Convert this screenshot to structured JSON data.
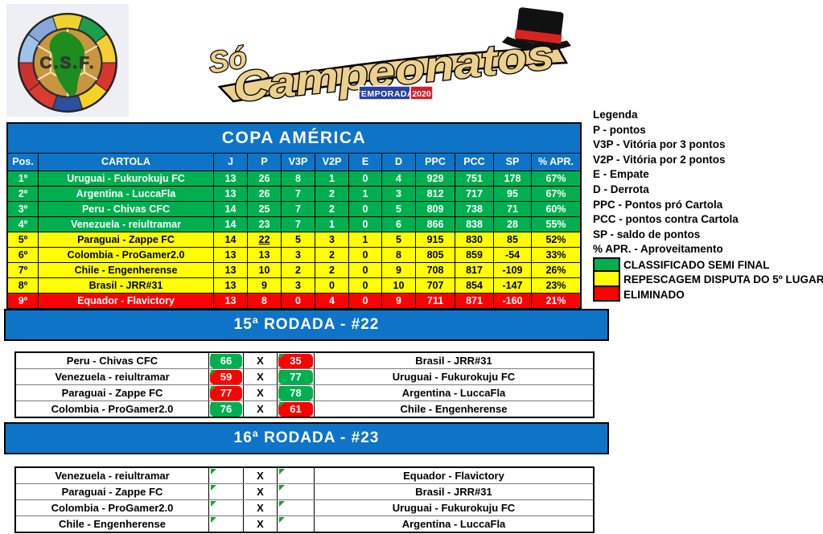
{
  "header": {
    "csf_logo_text": "C.S.F.",
    "csf_ring_colors": [
      "#F0D22E",
      "#1E9E4A",
      "#F4CE32",
      "#D8352F",
      "#F7D028",
      "#2D4FA0",
      "#DA3B32",
      "#C8332E",
      "#9FC2E8",
      "#86A8DC"
    ],
    "sc_logo": {
      "so": "Só",
      "main": "Campeonatos",
      "temporada": "TEMPORADA",
      "year": "2020"
    }
  },
  "colors": {
    "banner_blue": "#0E74C8",
    "win_green": "#00B050",
    "loss_red": "#FF0000",
    "playoff_yellow": "#FFFF00",
    "triangle_green": "#1E9E30"
  },
  "standings": {
    "title": "COPA AMÉRICA",
    "columns": [
      "Pos.",
      "CARTOLA",
      "J",
      "P",
      "V3P",
      "V2P",
      "E",
      "D",
      "PPC",
      "PCC",
      "SP",
      "% APR."
    ],
    "status_styles": {
      "classified": {
        "bg": "#00B050",
        "fg": "#FFFFFF"
      },
      "playoff": {
        "bg": "#FFFF00",
        "fg": "#000000"
      },
      "eliminated": {
        "bg": "#FF0000",
        "fg": "#FFFFFF"
      }
    },
    "rows": [
      {
        "pos": "1º",
        "cartola": "Uruguai - Fukurokuju FC",
        "j": "13",
        "p": "26",
        "v3p": "8",
        "v2p": "1",
        "e": "0",
        "d": "4",
        "ppc": "929",
        "pcc": "751",
        "sp": "178",
        "apr": "67%",
        "status": "classified"
      },
      {
        "pos": "2º",
        "cartola": "Argentina - LuccaFla",
        "j": "13",
        "p": "26",
        "v3p": "7",
        "v2p": "2",
        "e": "1",
        "d": "3",
        "ppc": "812",
        "pcc": "717",
        "sp": "95",
        "apr": "67%",
        "status": "classified"
      },
      {
        "pos": "3º",
        "cartola": "Peru - Chivas CFC",
        "j": "14",
        "p": "25",
        "v3p": "7",
        "v2p": "2",
        "e": "0",
        "d": "5",
        "ppc": "809",
        "pcc": "738",
        "sp": "71",
        "apr": "60%",
        "status": "classified"
      },
      {
        "pos": "4º",
        "cartola": "Venezuela - reiultramar",
        "j": "14",
        "p": "23",
        "v3p": "7",
        "v2p": "1",
        "e": "0",
        "d": "6",
        "ppc": "866",
        "pcc": "838",
        "sp": "28",
        "apr": "55%",
        "status": "classified"
      },
      {
        "pos": "5º",
        "cartola": "Paraguai - Zappe FC",
        "j": "14",
        "p": "22",
        "v3p": "5",
        "v2p": "3",
        "e": "1",
        "d": "5",
        "ppc": "915",
        "pcc": "830",
        "sp": "85",
        "apr": "52%",
        "status": "playoff",
        "p_underline": true
      },
      {
        "pos": "6º",
        "cartola": "Colombia - ProGamer2.0",
        "j": "13",
        "p": "13",
        "v3p": "3",
        "v2p": "2",
        "e": "0",
        "d": "8",
        "ppc": "805",
        "pcc": "859",
        "sp": "-54",
        "apr": "33%",
        "status": "playoff"
      },
      {
        "pos": "7º",
        "cartola": "Chile - Engenherense",
        "j": "13",
        "p": "10",
        "v3p": "2",
        "v2p": "2",
        "e": "0",
        "d": "9",
        "ppc": "708",
        "pcc": "817",
        "sp": "-109",
        "apr": "26%",
        "status": "playoff"
      },
      {
        "pos": "8º",
        "cartola": "Brasil - JRR#31",
        "j": "13",
        "p": "9",
        "v3p": "3",
        "v2p": "0",
        "e": "0",
        "d": "10",
        "ppc": "707",
        "pcc": "854",
        "sp": "-147",
        "apr": "23%",
        "status": "playoff"
      },
      {
        "pos": "9º",
        "cartola": "Equador - Flavictory",
        "j": "13",
        "p": "8",
        "v3p": "0",
        "v2p": "4",
        "e": "0",
        "d": "9",
        "ppc": "711",
        "pcc": "871",
        "sp": "-160",
        "apr": "21%",
        "status": "eliminated"
      }
    ]
  },
  "legend": {
    "title": "Legenda",
    "items": [
      "P - pontos",
      "V3P - Vitória por 3 pontos",
      "V2P - Vitória por 2 pontos",
      "E - Empate",
      "D - Derrota",
      "PPC - Pontos pró Cartola",
      "PCC - pontos contra Cartola",
      "SP - saldo de pontos",
      "% APR. - Aproveitamento"
    ],
    "statuses": [
      {
        "color": "#00B050",
        "label": "CLASSIFICADO SEMI FINAL"
      },
      {
        "color": "#FFFF00",
        "label": "REPESCAGEM DISPUTA DO 5º LUGAR"
      },
      {
        "color": "#FF0000",
        "label": "ELIMINADO"
      }
    ]
  },
  "result_styles": {
    "win": {
      "bg": "#00B050",
      "fg": "#FFFFFF"
    },
    "loss": {
      "bg": "#FF0000",
      "fg": "#FFFFFF"
    },
    "pending": {
      "bg": "#FFFFFF",
      "fg": "#000000"
    }
  },
  "rounds": [
    {
      "title": "15ª RODADA - #22",
      "separator": "X",
      "matches": [
        {
          "home": "Peru - Chivas CFC",
          "home_score": "66",
          "home_result": "win",
          "away_score": "35",
          "away_result": "loss",
          "away": "Brasil - JRR#31"
        },
        {
          "home": "Venezuela - reiultramar",
          "home_score": "59",
          "home_result": "loss",
          "away_score": "77",
          "away_result": "win",
          "away": "Uruguai - Fukurokuju FC"
        },
        {
          "home": "Paraguai - Zappe FC",
          "home_score": "77",
          "home_result": "loss",
          "away_score": "78",
          "away_result": "win",
          "away": "Argentina - LuccaFla"
        },
        {
          "home": "Colombia - ProGamer2.0",
          "home_score": "76",
          "home_result": "win",
          "away_score": "61",
          "away_result": "loss",
          "away": "Chile - Engenherense"
        }
      ]
    },
    {
      "title": "16ª RODADA - #23",
      "separator": "X",
      "matches": [
        {
          "home": "Venezuela - reiultramar",
          "home_score": "",
          "home_result": "pending",
          "away_score": "",
          "away_result": "pending",
          "away": "Equador - Flavictory"
        },
        {
          "home": "Paraguai - Zappe FC",
          "home_score": "",
          "home_result": "pending",
          "away_score": "",
          "away_result": "pending",
          "away": "Brasil - JRR#31"
        },
        {
          "home": "Colombia - ProGamer2.0",
          "home_score": "",
          "home_result": "pending",
          "away_score": "",
          "away_result": "pending",
          "away": "Uruguai - Fukurokuju FC"
        },
        {
          "home": "Chile - Engenherense",
          "home_score": "",
          "home_result": "pending",
          "away_score": "",
          "away_result": "pending",
          "away": "Argentina - LuccaFla"
        }
      ]
    }
  ]
}
